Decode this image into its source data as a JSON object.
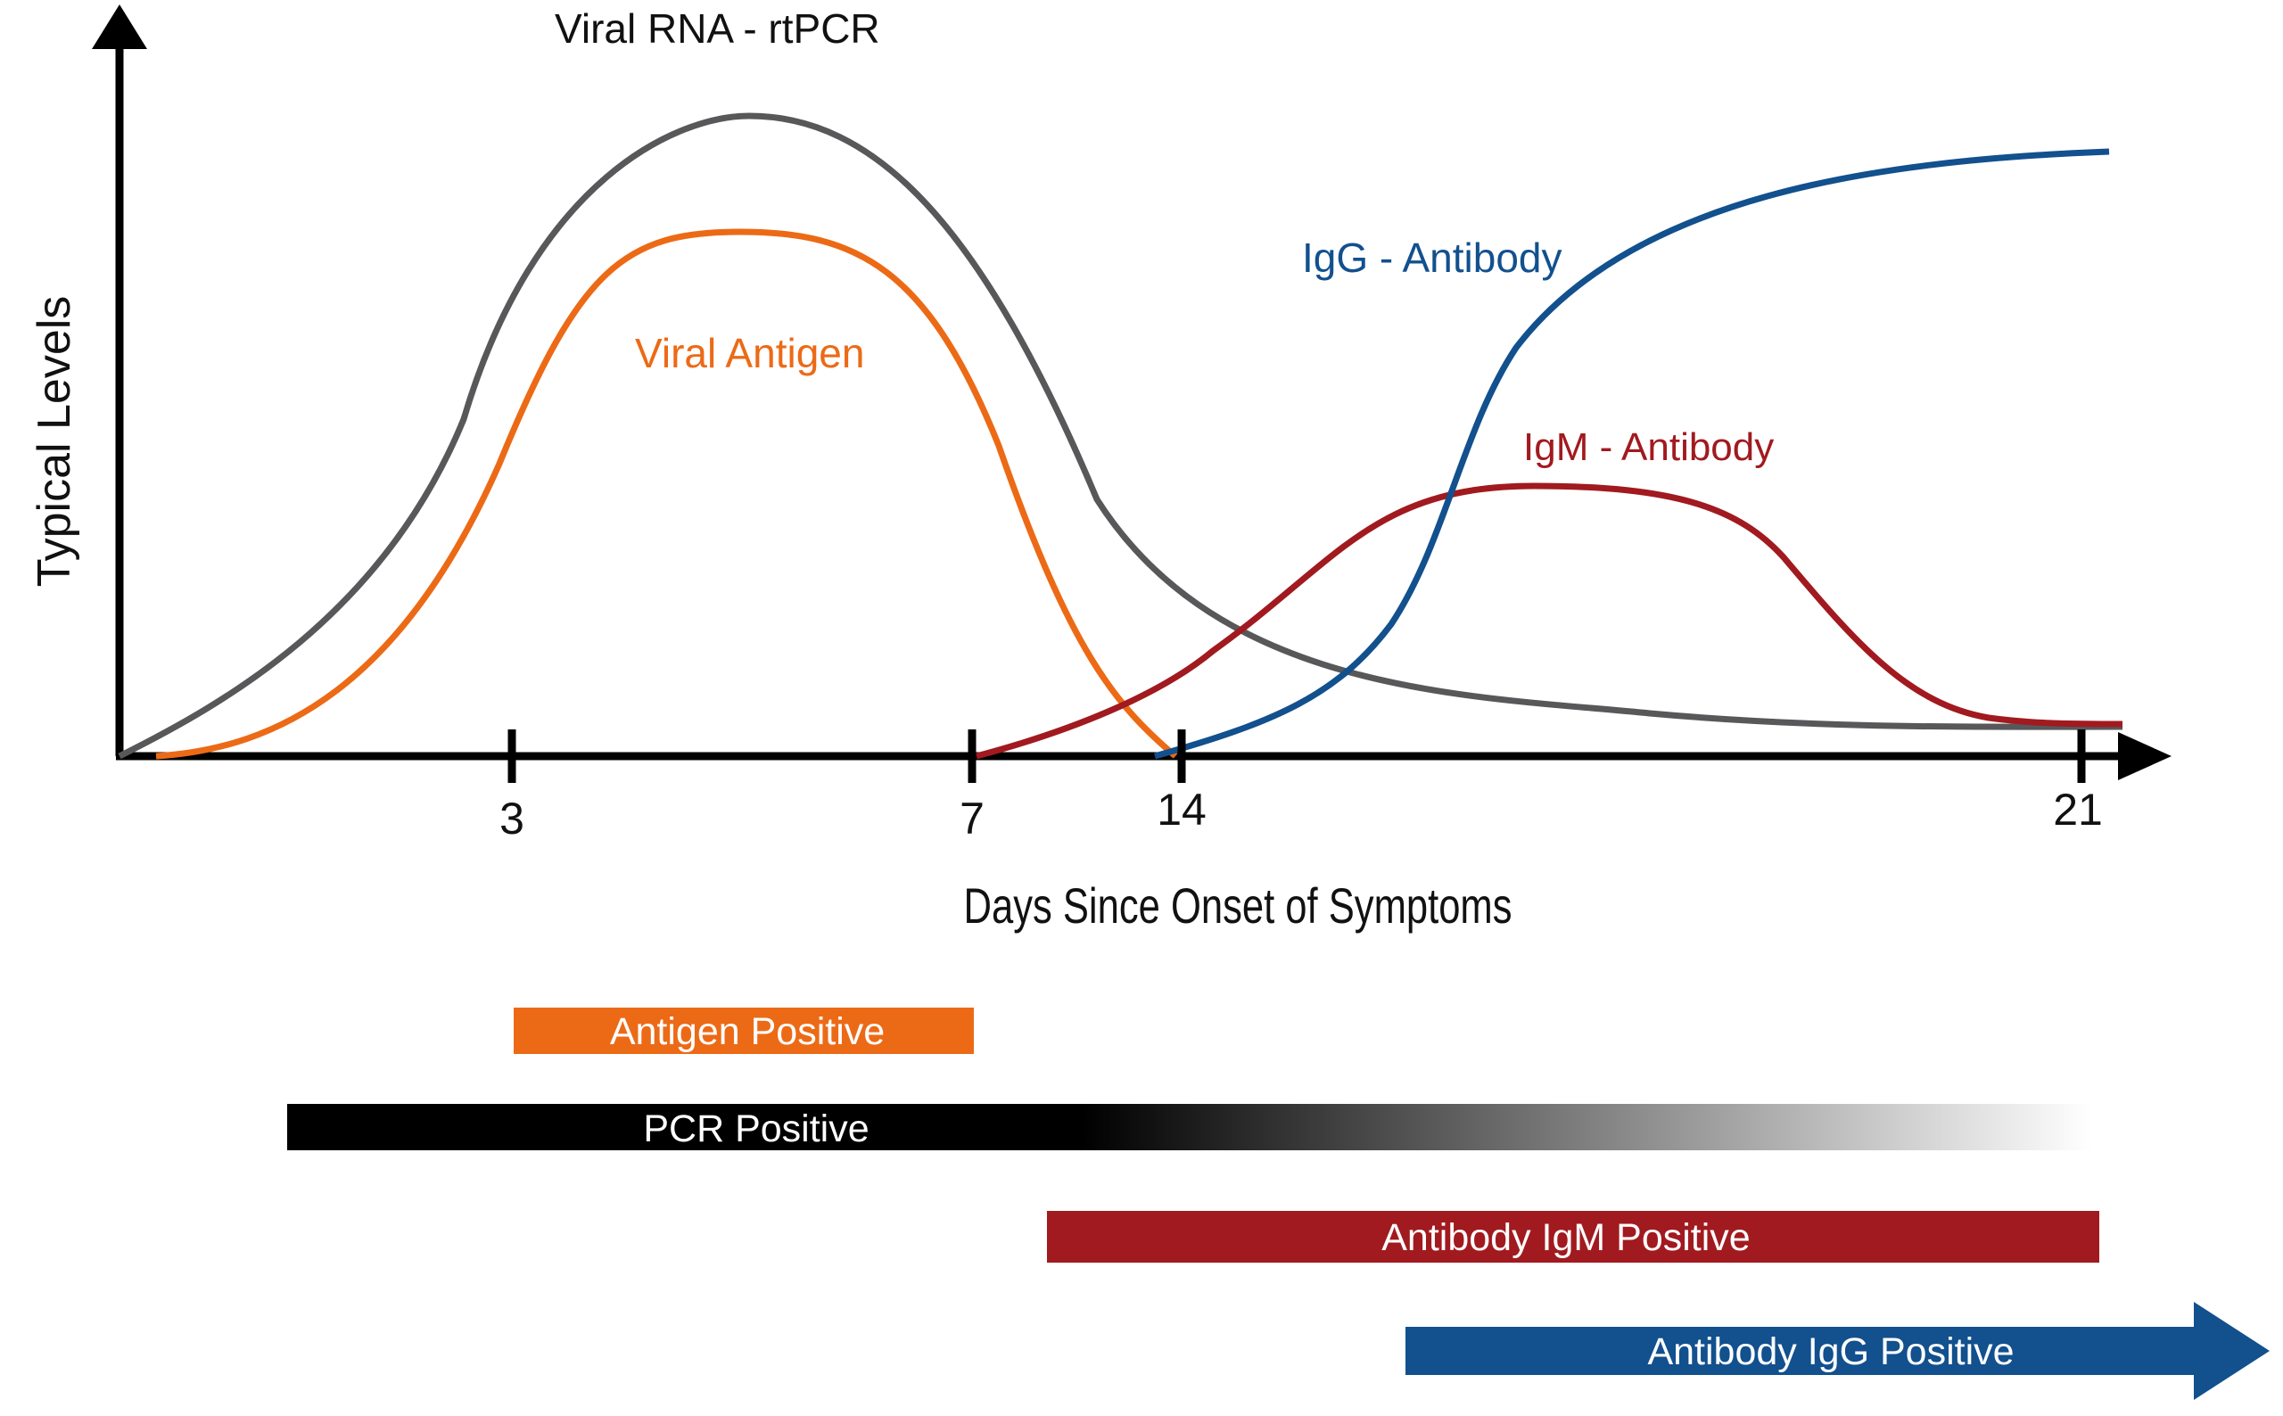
{
  "chart_data": {
    "type": "line",
    "title": "",
    "xlabel": "Days Since Onset of Symptoms",
    "ylabel": "Typical Levels",
    "x_ticks": [
      {
        "label": "3"
      },
      {
        "label": "7"
      },
      {
        "label": "14"
      },
      {
        "label": "21"
      }
    ],
    "y_ticks": [],
    "series": [
      {
        "name": "Viral RNA - rtPCR",
        "color": "#58585a"
      },
      {
        "name": "Viral Antigen",
        "color": "#ec6a16"
      },
      {
        "name": "IgG - Antibody",
        "color": "#12508e"
      },
      {
        "name": "IgM - Antibody",
        "color": "#a11a1f"
      }
    ],
    "positivity_bars": [
      {
        "label": "Antigen Positive",
        "color": "#ec6a16"
      },
      {
        "label": "PCR Positive",
        "color": "#000000",
        "fade_to": "#ffffff"
      },
      {
        "label": "Antibody IgM Positive",
        "color": "#a11a1f"
      },
      {
        "label": "Antibody IgG Positive",
        "color": "#12508e",
        "shape": "arrow"
      }
    ],
    "grid": false,
    "legend": "inline labels"
  }
}
